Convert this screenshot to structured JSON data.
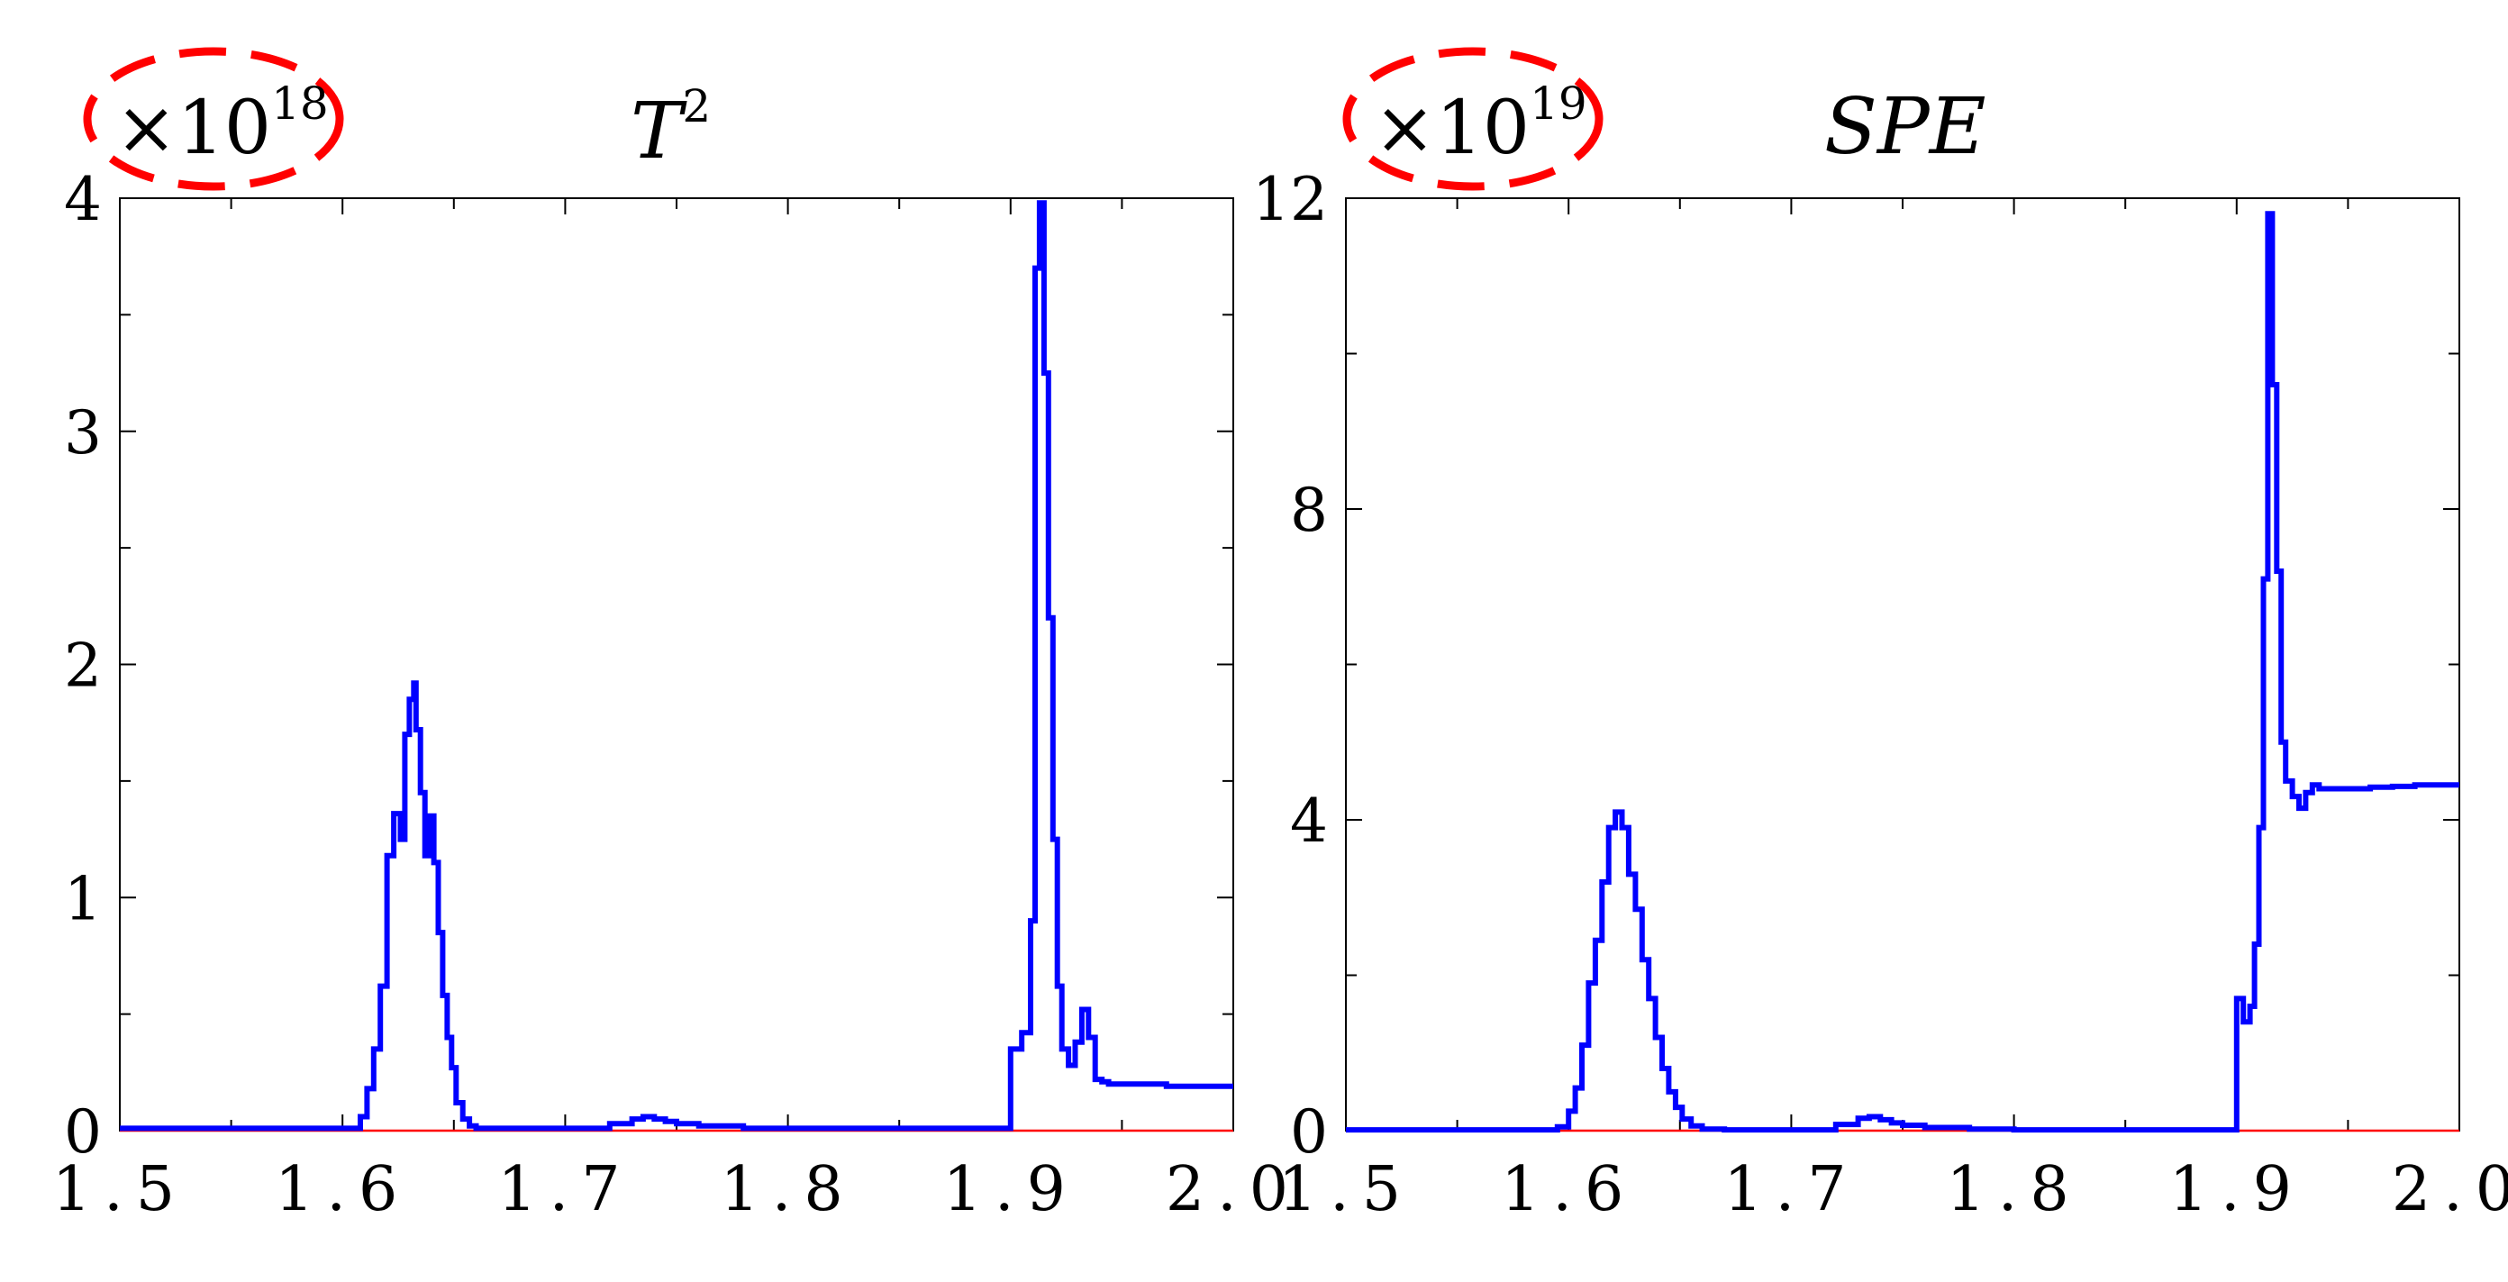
{
  "colors": {
    "series": "#0000ff",
    "threshold": "#ff0000",
    "marker": "#ff0000",
    "axes": "#000000",
    "background": "#ffffff"
  },
  "chart_data": [
    {
      "type": "line",
      "title": "T",
      "title_superscript": "2",
      "multiplier": {
        "base": "×10",
        "exponent": "18"
      },
      "multiplier_marked": true,
      "xlim": [
        1.5,
        2.0
      ],
      "ylim": [
        0,
        4
      ],
      "x_ticks": [
        1.5,
        1.6,
        1.7,
        1.8,
        1.9,
        2.0
      ],
      "x_tick_labels": [
        "1.5",
        "1.6",
        "1.7",
        "1.8",
        "1.9",
        "2.0"
      ],
      "y_ticks": [
        0,
        1,
        2,
        3,
        4
      ],
      "y_tick_labels": [
        "0",
        "1",
        "2",
        "3",
        "4"
      ],
      "grid": false,
      "threshold": 0,
      "series": [
        {
          "style": "step",
          "x": [
            1.5,
            1.608,
            1.611,
            1.614,
            1.617,
            1.62,
            1.623,
            1.626,
            1.628,
            1.63,
            1.632,
            1.633,
            1.635,
            1.637,
            1.639,
            1.641,
            1.643,
            1.645,
            1.647,
            1.649,
            1.651,
            1.654,
            1.657,
            1.66,
            1.665,
            1.67,
            1.7,
            1.72,
            1.73,
            1.735,
            1.74,
            1.745,
            1.75,
            1.76,
            1.78,
            1.8,
            1.9,
            1.9,
            1.905,
            1.909,
            1.911,
            1.913,
            1.915,
            1.917,
            1.919,
            1.921,
            1.923,
            1.926,
            1.929,
            1.932,
            1.935,
            1.938,
            1.941,
            1.944,
            1.947,
            1.95,
            1.96,
            1.97,
            1.98,
            1.99,
            2.0
          ],
          "y": [
            0.01,
            0.06,
            0.18,
            0.35,
            0.62,
            1.18,
            1.36,
            1.25,
            1.7,
            1.85,
            1.92,
            1.72,
            1.45,
            1.18,
            1.35,
            1.15,
            0.85,
            0.58,
            0.4,
            0.27,
            0.12,
            0.05,
            0.02,
            0.01,
            0.01,
            0.01,
            0.01,
            0.03,
            0.05,
            0.06,
            0.05,
            0.04,
            0.03,
            0.02,
            0.01,
            0.01,
            0.01,
            0.35,
            0.42,
            0.9,
            3.7,
            3.98,
            3.25,
            2.2,
            1.25,
            0.62,
            0.35,
            0.28,
            0.38,
            0.52,
            0.4,
            0.22,
            0.21,
            0.2,
            0.2,
            0.2,
            0.2,
            0.19,
            0.19,
            0.19,
            0.19
          ]
        }
      ]
    },
    {
      "type": "line",
      "title": "SPE",
      "title_superscript": "",
      "multiplier": {
        "base": "×10",
        "exponent": "19"
      },
      "multiplier_marked": true,
      "xlim": [
        1.5,
        2.0
      ],
      "ylim": [
        0,
        12
      ],
      "x_ticks": [
        1.5,
        1.6,
        1.7,
        1.8,
        1.9,
        2.0
      ],
      "x_tick_labels": [
        "1.5",
        "1.6",
        "1.7",
        "1.8",
        "1.9",
        "2.0"
      ],
      "y_ticks": [
        0,
        4,
        8,
        12
      ],
      "y_tick_labels": [
        "0",
        "4",
        "8",
        "12"
      ],
      "y_minor_ticks": [
        2,
        6,
        10
      ],
      "grid": false,
      "threshold": 0,
      "series": [
        {
          "style": "step",
          "x": [
            1.5,
            1.595,
            1.6,
            1.603,
            1.606,
            1.609,
            1.612,
            1.615,
            1.618,
            1.621,
            1.624,
            1.627,
            1.63,
            1.633,
            1.636,
            1.639,
            1.642,
            1.645,
            1.648,
            1.651,
            1.655,
            1.66,
            1.67,
            1.7,
            1.72,
            1.73,
            1.735,
            1.74,
            1.745,
            1.75,
            1.76,
            1.78,
            1.8,
            1.9,
            1.9,
            1.903,
            1.906,
            1.908,
            1.91,
            1.912,
            1.914,
            1.916,
            1.918,
            1.92,
            1.922,
            1.925,
            1.928,
            1.931,
            1.934,
            1.937,
            1.94,
            1.95,
            1.96,
            1.97,
            1.98,
            1.99,
            2.0
          ],
          "y": [
            0.01,
            0.05,
            0.25,
            0.55,
            1.1,
            1.9,
            2.45,
            3.2,
            3.9,
            4.1,
            3.9,
            3.3,
            2.85,
            2.2,
            1.7,
            1.2,
            0.8,
            0.5,
            0.3,
            0.15,
            0.06,
            0.02,
            0.01,
            0.01,
            0.08,
            0.16,
            0.18,
            0.14,
            0.1,
            0.07,
            0.04,
            0.02,
            0.01,
            0.01,
            1.7,
            1.4,
            1.6,
            2.4,
            3.9,
            7.1,
            11.8,
            9.6,
            7.2,
            5.0,
            4.5,
            4.3,
            4.15,
            4.35,
            4.45,
            4.4,
            4.4,
            4.4,
            4.42,
            4.43,
            4.45,
            4.45,
            4.45
          ]
        }
      ]
    }
  ]
}
